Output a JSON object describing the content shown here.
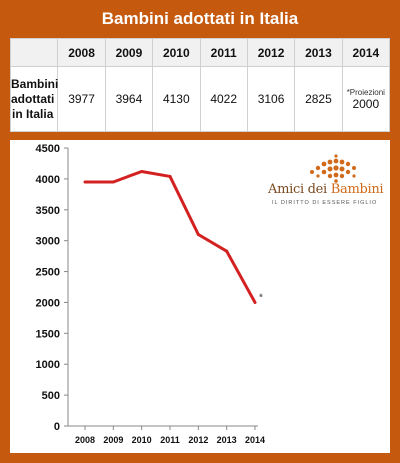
{
  "title": "Bambini adottati in Italia",
  "table": {
    "row_label_lines": [
      "Bambini",
      "adottati",
      "in Italia"
    ],
    "years": [
      "2008",
      "2009",
      "2010",
      "2011",
      "2012",
      "2013",
      "2014"
    ],
    "values": [
      "3977",
      "3964",
      "4130",
      "4022",
      "3106",
      "2825",
      "2000"
    ],
    "projection_note": "*Proiezioni"
  },
  "logo": {
    "name_part1": "Amici dei ",
    "name_part2": "Bambini",
    "tagline": "IL DIRITTO DI ESSERE FIGLIO"
  },
  "colors": {
    "frame": "#c55a0f",
    "line": "#d32020",
    "logo": "#d16a1a"
  },
  "chart_data": {
    "type": "line",
    "categories": [
      "2008",
      "2009",
      "2010",
      "2011",
      "2012",
      "2013",
      "2014"
    ],
    "series": [
      {
        "values": [
          3950,
          3950,
          4120,
          4040,
          3100,
          2830,
          2000
        ]
      }
    ],
    "ylim": [
      0,
      4500
    ],
    "yticks": [
      "0",
      "500",
      "1000",
      "1500",
      "2000",
      "2500",
      "3000",
      "3500",
      "4000",
      "4500"
    ],
    "annotation": "*",
    "grid": false
  }
}
